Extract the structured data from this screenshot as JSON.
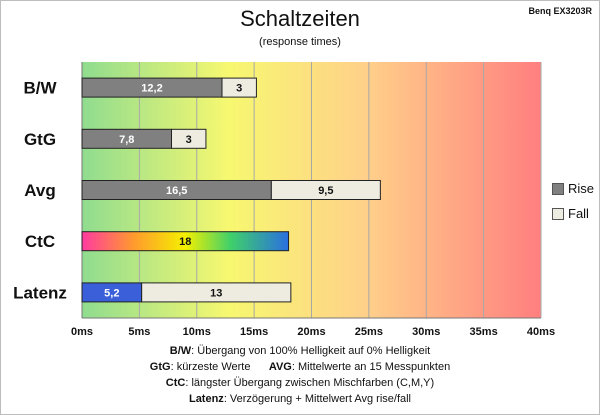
{
  "header": {
    "title": "Schaltzeiten",
    "subtitle": "(response times)",
    "model": "Benq EX3203R"
  },
  "legend": [
    {
      "label": "Rise",
      "color": "#808080"
    },
    {
      "label": "Fall",
      "color": "#eeece1"
    }
  ],
  "notes": {
    "bw_key": "B/W",
    "bw_text": ":  Übergang von 100% Helligkeit auf 0% Helligkeit",
    "gtg_key": "GtG",
    "gtg_text": ": kürzeste  Werte",
    "avg_key": "AVG",
    "avg_text": ": Mittelwerte  an 15 Messpunkten",
    "ctc_key": "CtC",
    "ctc_text": ": längster Übergang  zwischen Mischfarben  (C,M,Y)",
    "lat_key": "Latenz",
    "lat_text": ": Verzögerung  + Mittelwert Avg rise/fall"
  },
  "chart_data": {
    "type": "bar",
    "orientation": "horizontal",
    "stacked": true,
    "categories": [
      "B/W",
      "GtG",
      "Avg",
      "CtC",
      "Latenz"
    ],
    "series": [
      {
        "name": "Rise",
        "values": [
          12.2,
          7.8,
          16.5,
          18,
          5.2
        ],
        "labels": [
          "12,2",
          "7,8",
          "16,5",
          "18",
          "5,2"
        ]
      },
      {
        "name": "Fall",
        "values": [
          3,
          3,
          9.5,
          null,
          13
        ],
        "labels": [
          "3",
          "3",
          "9,5",
          "",
          "13"
        ]
      }
    ],
    "xlim": [
      0,
      40
    ],
    "xticks": [
      "0ms",
      "5ms",
      "10ms",
      "15ms",
      "20ms",
      "25ms",
      "30ms",
      "35ms",
      "40ms"
    ],
    "grid": true,
    "legend_position": "right",
    "colors": {
      "rise": "#808080",
      "fall": "#eeece1",
      "latency_rise": "#3a5fd8",
      "background_gradient": [
        "#8fdc8f",
        "#f7f870",
        "#ffd08a",
        "#ff7f7f"
      ]
    }
  }
}
